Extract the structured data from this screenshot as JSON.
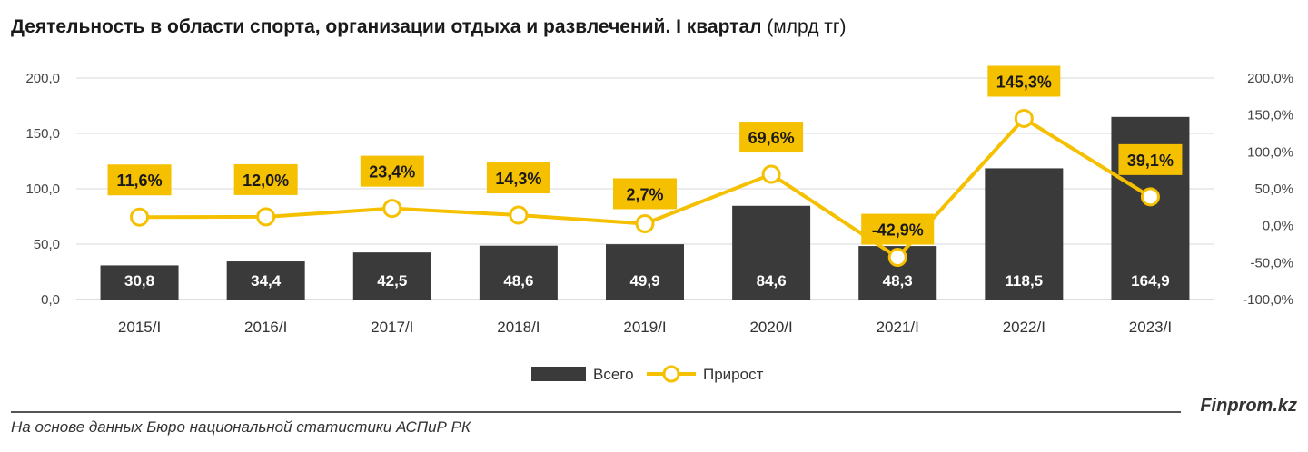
{
  "header": {
    "title_main": "Деятельность в области спорта, организации отдыха и развлечений. I квартал",
    "title_unit": "(млрд тг)"
  },
  "chart_data": {
    "type": "bar",
    "categories": [
      "2015/I",
      "2016/I",
      "2017/I",
      "2018/I",
      "2019/I",
      "2020/I",
      "2021/I",
      "2022/I",
      "2023/I"
    ],
    "series": [
      {
        "name": "Всего",
        "type": "bar",
        "axis": "left",
        "color": "#3a3a3a",
        "values": [
          30.8,
          34.4,
          42.5,
          48.6,
          49.9,
          84.6,
          48.3,
          118.5,
          164.9
        ],
        "labels": [
          "30,8",
          "34,4",
          "42,5",
          "48,6",
          "49,9",
          "84,6",
          "48,3",
          "118,5",
          "164,9"
        ]
      },
      {
        "name": "Прирост",
        "type": "line",
        "axis": "right",
        "color": "#f5c000",
        "values": [
          11.6,
          12.0,
          23.4,
          14.3,
          2.7,
          69.6,
          -42.9,
          145.3,
          39.1
        ],
        "labels": [
          "11,6%",
          "12,0%",
          "23,4%",
          "14,3%",
          "2,7%",
          "69,6%",
          "-42,9%",
          "145,3%",
          "39,1%"
        ]
      }
    ],
    "y_left": {
      "min": 0,
      "max": 200,
      "ticks": [
        0,
        50,
        100,
        150,
        200
      ],
      "tick_labels": [
        "0,0",
        "50,0",
        "100,0",
        "150,0",
        "200,0"
      ]
    },
    "y_right": {
      "min": -100,
      "max": 200,
      "ticks": [
        -100,
        -50,
        0,
        50,
        100,
        150,
        200
      ],
      "tick_labels": [
        "-100,0%",
        "-50,0%",
        "0,0%",
        "50,0%",
        "100,0%",
        "150,0%",
        "200,0%"
      ]
    },
    "grid": true,
    "legend": "bottom"
  },
  "footer": {
    "brand": "Finprom.kz",
    "source": "На основе данных Бюро национальной статистики АСПиР РК"
  }
}
